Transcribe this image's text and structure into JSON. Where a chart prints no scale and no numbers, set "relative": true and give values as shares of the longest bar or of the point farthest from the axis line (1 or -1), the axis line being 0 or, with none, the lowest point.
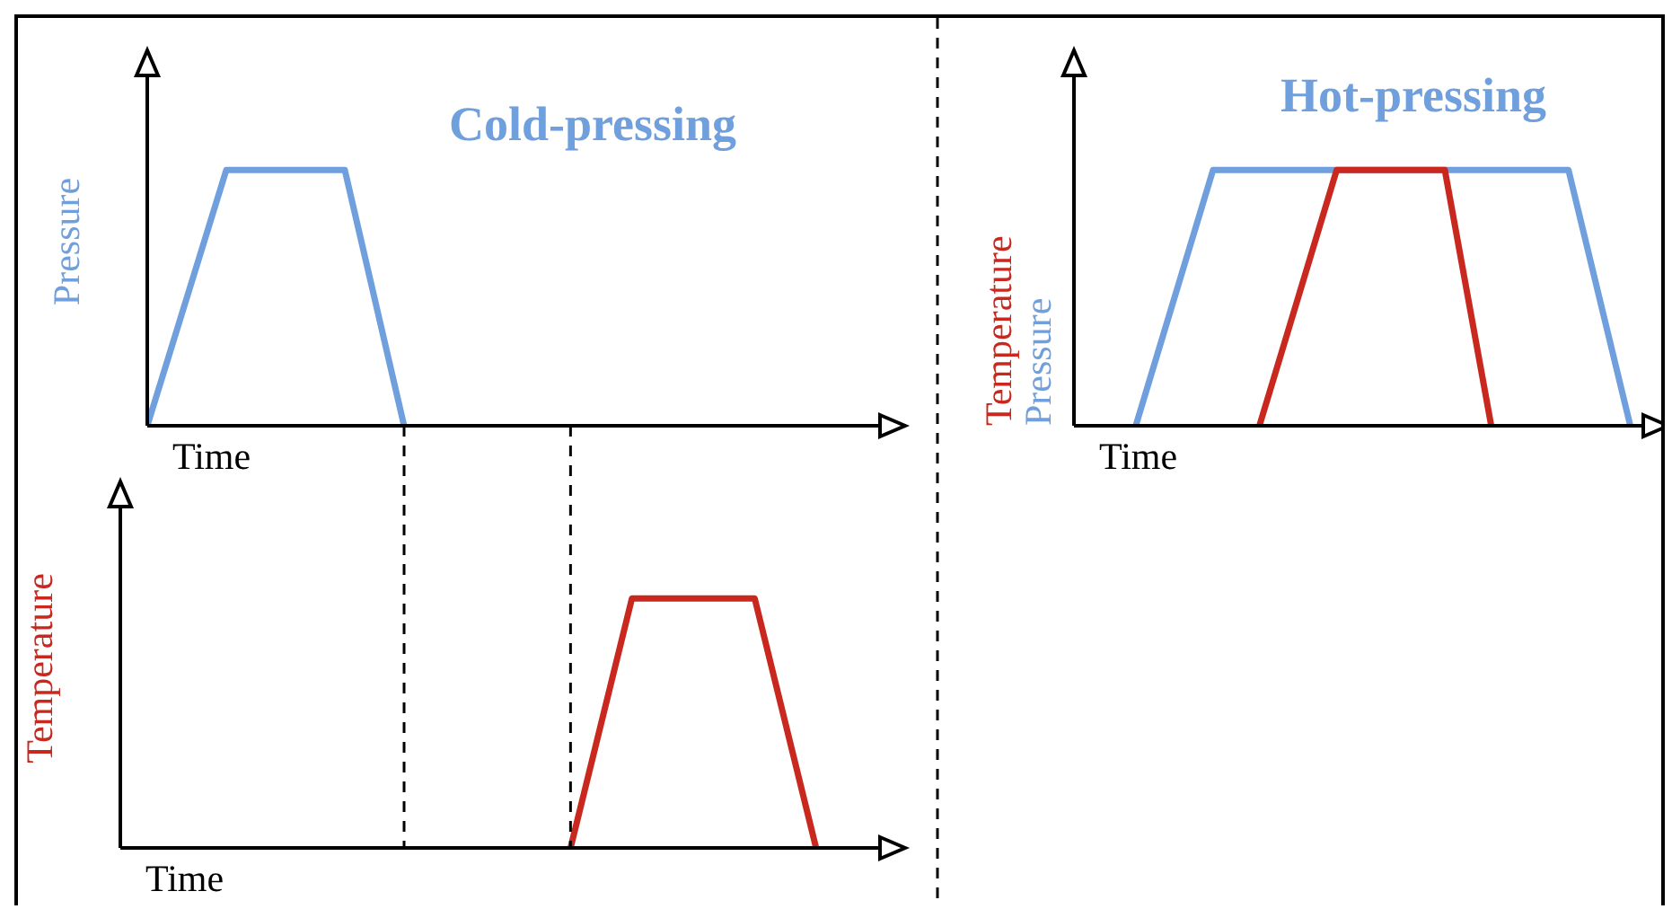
{
  "chart_data": [
    {
      "type": "line",
      "title": "Cold-pressing",
      "xlabel": "Time",
      "ylabel": "Pressure",
      "relative": true,
      "categories": [
        null,
        null,
        null,
        null,
        null,
        null,
        null,
        null,
        null,
        null,
        null,
        null,
        null,
        null,
        null,
        null,
        null,
        null,
        null,
        null,
        null,
        null,
        null,
        null,
        null,
        null,
        null,
        null,
        null,
        null,
        null,
        null,
        null,
        null,
        null,
        null,
        null,
        null,
        null
      ],
      "series": [
        {
          "color": "#6f9fdc",
          "values": [
            0,
            null,
            null,
            null,
            1,
            null,
            null,
            null,
            null,
            null,
            1,
            null,
            null,
            0,
            null,
            null,
            null,
            null,
            null,
            null,
            null,
            null,
            null,
            null,
            null,
            null,
            null,
            null,
            null,
            null,
            null,
            null,
            null,
            null,
            null,
            null,
            null,
            null,
            null
          ]
        }
      ]
    },
    {
      "type": "line",
      "xlabel": "Time",
      "ylabel": "Temperature",
      "relative": true,
      "categories": [
        null,
        null,
        null,
        null,
        null,
        null,
        null,
        null,
        null,
        null,
        null,
        null,
        null,
        null,
        null,
        null,
        null,
        null,
        null,
        null,
        null,
        null,
        null,
        null,
        null,
        null,
        null,
        null,
        null,
        null,
        null,
        null,
        null,
        null,
        null,
        null,
        null,
        null,
        null
      ],
      "series": [
        {
          "color": "#c8281e",
          "values": [
            null,
            null,
            null,
            null,
            null,
            null,
            null,
            null,
            null,
            null,
            null,
            null,
            null,
            null,
            null,
            null,
            null,
            null,
            null,
            null,
            null,
            null,
            0,
            null,
            null,
            1,
            null,
            null,
            null,
            null,
            null,
            1,
            null,
            null,
            0,
            null,
            null,
            null,
            null
          ]
        }
      ]
    },
    {
      "type": "line",
      "title": "Hot-pressing",
      "xlabel": "Time",
      "relative": true,
      "categories": [
        null,
        null,
        null,
        null,
        null,
        null,
        null,
        null,
        null,
        null,
        null,
        null,
        null,
        null,
        null,
        null,
        null,
        null,
        null,
        null,
        null,
        null,
        null,
        null,
        null,
        null,
        null,
        null,
        null,
        null,
        null,
        null,
        null,
        null,
        null,
        null,
        null,
        null,
        null
      ],
      "series": [
        {
          "name": "Pressure",
          "color": "#6f9fdc",
          "values": [
            null,
            null,
            null,
            null,
            0,
            null,
            null,
            null,
            null,
            1,
            null,
            null,
            null,
            null,
            null,
            null,
            null,
            null,
            null,
            null,
            null,
            null,
            null,
            null,
            null,
            null,
            null,
            null,
            null,
            null,
            null,
            null,
            1,
            null,
            null,
            null,
            0,
            null,
            null
          ]
        },
        {
          "name": "Temperature",
          "color": "#c8281e",
          "values": [
            null,
            null,
            null,
            null,
            null,
            null,
            null,
            null,
            null,
            null,
            null,
            null,
            0,
            null,
            null,
            null,
            null,
            1,
            null,
            null,
            null,
            null,
            null,
            null,
            1,
            null,
            null,
            0,
            null,
            null,
            null,
            null,
            null,
            null,
            null,
            null,
            null,
            null,
            null
          ]
        }
      ]
    }
  ]
}
